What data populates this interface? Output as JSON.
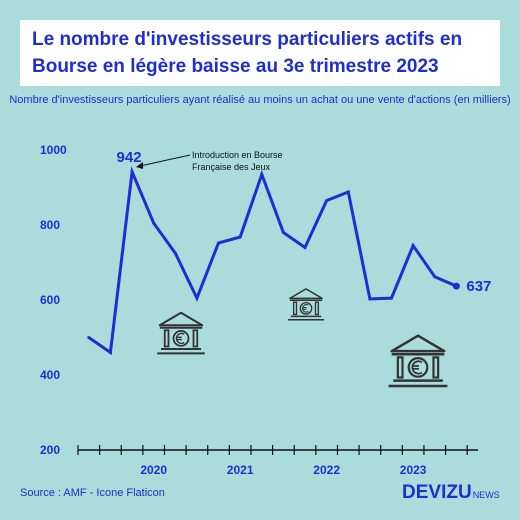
{
  "title_lines": [
    "Le nombre d'investisseurs particuliers actifs en",
    "Bourse en légère baisse au 3e trimestre 2023"
  ],
  "subtitle": "Nombre d'investisseurs particuliers ayant réalisé au moins un achat ou une vente d'actions (en milliers)",
  "source": "Source : AMF - Icone Flaticon",
  "brand": {
    "name": "DEVIZU",
    "suffix": "NEWS"
  },
  "annotation": {
    "lines": [
      "Introduction en Bourse",
      "Française des Jeux"
    ],
    "target_index": 4
  },
  "icons": [
    "bank-euro-icon",
    "bank-euro-icon",
    "bank-euro-icon"
  ],
  "colors": {
    "background": "#a9dcda",
    "accent": "#1e2ed4",
    "title_bg": "#ffffff"
  },
  "chart_data": {
    "type": "line",
    "title": "Le nombre d'investisseurs particuliers actifs en Bourse en légère baisse au 3e trimestre 2023",
    "ylabel": "",
    "ylim": [
      200,
      1000
    ],
    "yticks": [
      200,
      400,
      600,
      800,
      1000
    ],
    "xlim": [
      2019.125,
      2023.75
    ],
    "year_labels": [
      {
        "label": "2020",
        "x": 2020.0
      },
      {
        "label": "2021",
        "x": 2021.0
      },
      {
        "label": "2022",
        "x": 2022.0
      },
      {
        "label": "2023",
        "x": 2023.0
      }
    ],
    "grid": false,
    "series": [
      {
        "values": [
          {
            "x": 2019.25,
            "y": 500
          },
          {
            "x": 2019.5,
            "y": 460
          },
          {
            "x": 2019.75,
            "y": 942
          },
          {
            "x": 2020.0,
            "y": 805
          },
          {
            "x": 2020.25,
            "y": 725
          },
          {
            "x": 2020.5,
            "y": 605
          },
          {
            "x": 2020.75,
            "y": 752
          },
          {
            "x": 2021.0,
            "y": 768
          },
          {
            "x": 2021.25,
            "y": 935
          },
          {
            "x": 2021.5,
            "y": 780
          },
          {
            "x": 2021.75,
            "y": 740
          },
          {
            "x": 2022.0,
            "y": 865
          },
          {
            "x": 2022.25,
            "y": 888
          },
          {
            "x": 2022.5,
            "y": 603
          },
          {
            "x": 2022.75,
            "y": 605
          },
          {
            "x": 2023.0,
            "y": 745
          },
          {
            "x": 2023.25,
            "y": 662
          },
          {
            "x": 2023.5,
            "y": 637
          }
        ]
      }
    ],
    "data_labels": [
      {
        "index": 2,
        "text": "942"
      },
      {
        "index": 17,
        "text": "637"
      }
    ]
  }
}
